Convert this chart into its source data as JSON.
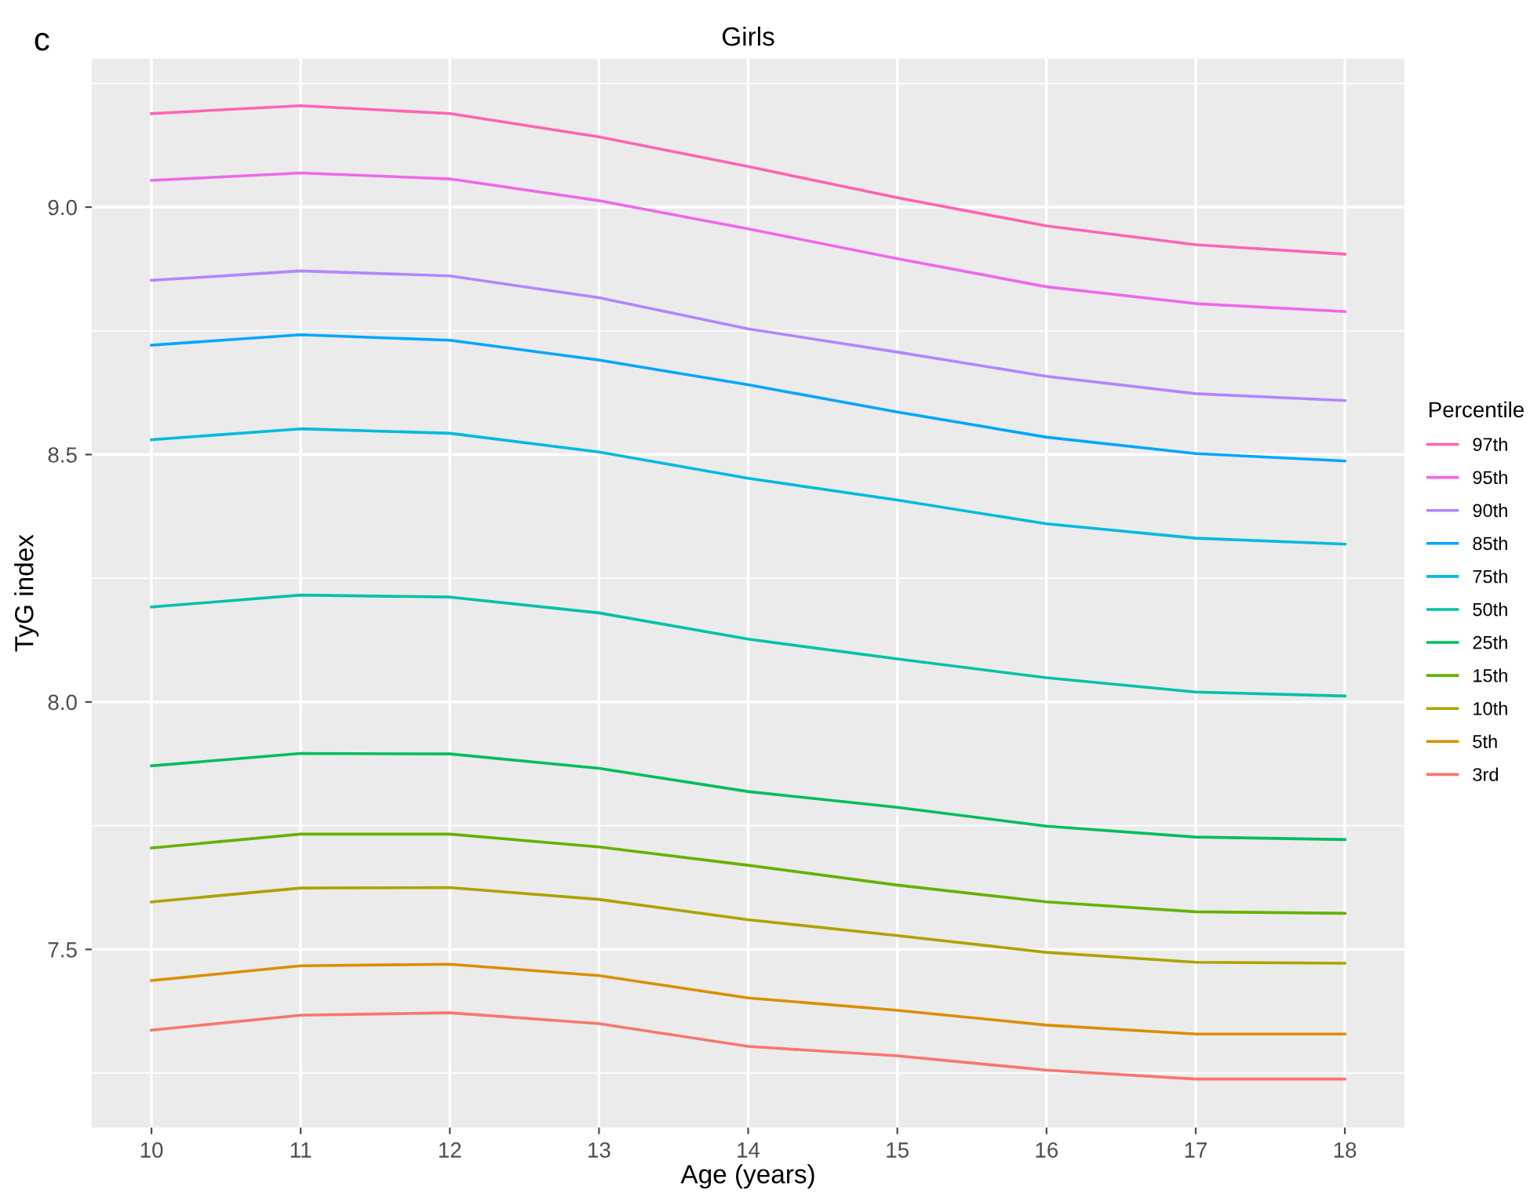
{
  "chart_data": {
    "type": "line",
    "title": "Girls",
    "xlabel": "Age (years)",
    "ylabel": "TyG index",
    "legend_title": "Percentile",
    "annotations": [
      "c"
    ],
    "x": [
      10,
      11,
      12,
      13,
      14,
      15,
      16,
      17,
      18
    ],
    "xlim": [
      9.6,
      18.4
    ],
    "xticks": [
      10,
      11,
      12,
      13,
      14,
      15,
      16,
      17,
      18
    ],
    "ylim": [
      7.14,
      9.3
    ],
    "yticks": [
      {
        "value": 7.5,
        "label": "7.5"
      },
      {
        "value": 8.0,
        "label": "8.0"
      },
      {
        "value": 8.5,
        "label": "8.5"
      },
      {
        "value": 9.0,
        "label": "9.0"
      }
    ],
    "grid": true,
    "legend": "right",
    "line_style": "solid",
    "marker": "none",
    "series": [
      {
        "name": "97th",
        "color": "#ff63b6",
        "values": [
          9.189,
          9.205,
          9.189,
          9.142,
          9.082,
          9.019,
          8.962,
          8.924,
          8.905
        ]
      },
      {
        "name": "95th",
        "color": "#ef67eb",
        "values": [
          9.054,
          9.069,
          9.057,
          9.013,
          8.956,
          8.896,
          8.839,
          8.805,
          8.789
        ]
      },
      {
        "name": "90th",
        "color": "#b385ff",
        "values": [
          8.852,
          8.871,
          8.861,
          8.817,
          8.754,
          8.707,
          8.658,
          8.623,
          8.609
        ]
      },
      {
        "name": "85th",
        "color": "#00a6ff",
        "values": [
          8.721,
          8.742,
          8.731,
          8.691,
          8.641,
          8.586,
          8.535,
          8.502,
          8.487
        ]
      },
      {
        "name": "75th",
        "color": "#00bade",
        "values": [
          8.53,
          8.552,
          8.543,
          8.505,
          8.452,
          8.408,
          8.36,
          8.331,
          8.319
        ]
      },
      {
        "name": "50th",
        "color": "#00c1a7",
        "values": [
          8.192,
          8.216,
          8.212,
          8.18,
          8.127,
          8.087,
          8.049,
          8.02,
          8.012
        ]
      },
      {
        "name": "25th",
        "color": "#00bd5c",
        "values": [
          7.871,
          7.896,
          7.895,
          7.866,
          7.819,
          7.787,
          7.749,
          7.727,
          7.722
        ]
      },
      {
        "name": "15th",
        "color": "#64b200",
        "values": [
          7.705,
          7.733,
          7.733,
          7.707,
          7.67,
          7.63,
          7.596,
          7.576,
          7.573
        ]
      },
      {
        "name": "10th",
        "color": "#aea200",
        "values": [
          7.596,
          7.624,
          7.625,
          7.601,
          7.56,
          7.528,
          7.494,
          7.474,
          7.472
        ]
      },
      {
        "name": "5th",
        "color": "#db8e00",
        "values": [
          7.437,
          7.467,
          7.47,
          7.447,
          7.402,
          7.377,
          7.347,
          7.329,
          7.329
        ]
      },
      {
        "name": "3rd",
        "color": "#f8766d",
        "values": [
          7.337,
          7.367,
          7.372,
          7.35,
          7.304,
          7.285,
          7.256,
          7.238,
          7.238
        ]
      }
    ]
  }
}
